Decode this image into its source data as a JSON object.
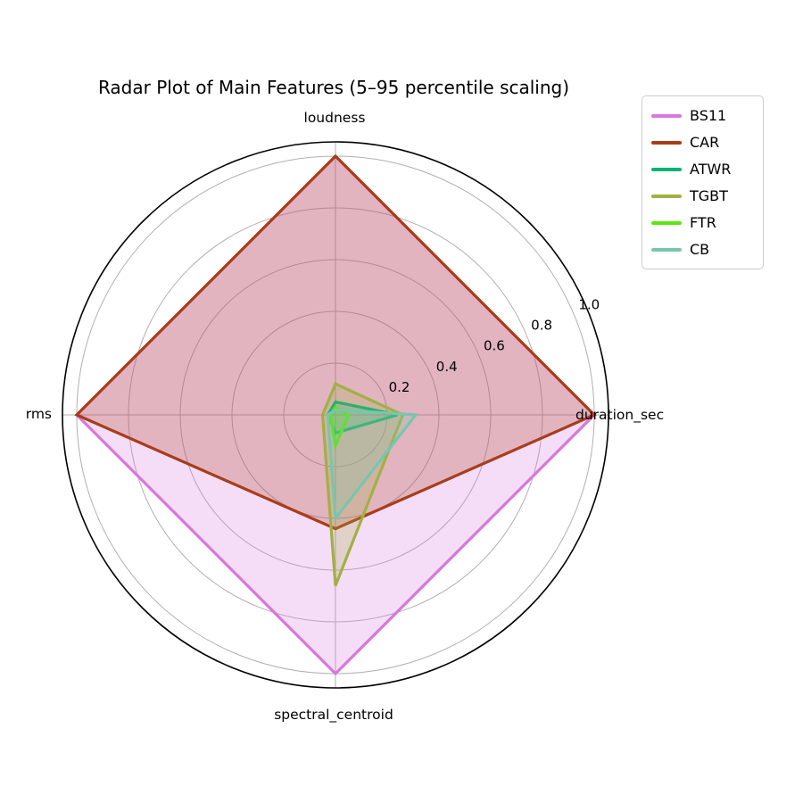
{
  "chart_data": {
    "type": "radar",
    "title": "Radar Plot of Main Features (5–95 percentile scaling)",
    "axes": [
      "duration_sec",
      "loudness",
      "rms",
      "spectral_centroid"
    ],
    "radial_ticks": [
      0.2,
      0.4,
      0.6,
      0.8,
      1.0
    ],
    "radial_tick_labels": [
      "0.2",
      "0.4",
      "0.6",
      "0.8",
      "1.0"
    ],
    "rlim": [
      0,
      1.055
    ],
    "grid": true,
    "fill_alpha": 0.25,
    "legend_position": "upper right",
    "series": [
      {
        "name": "BS11",
        "color": "#D876DE",
        "values": [
          1.0,
          1.0,
          1.0,
          1.0
        ]
      },
      {
        "name": "CAR",
        "color": "#A93D1A",
        "values": [
          1.0,
          1.0,
          1.0,
          0.44
        ]
      },
      {
        "name": "ATWR",
        "color": "#00B377",
        "values": [
          0.24,
          0.05,
          0.03,
          0.07
        ]
      },
      {
        "name": "TGBT",
        "color": "#A2B044",
        "values": [
          0.26,
          0.12,
          0.05,
          0.66
        ]
      },
      {
        "name": "FTR",
        "color": "#5CE60F",
        "values": [
          0.05,
          0.03,
          0.02,
          0.12
        ]
      },
      {
        "name": "CB",
        "color": "#77C6AD",
        "values": [
          0.31,
          0.02,
          0.03,
          0.4
        ]
      }
    ],
    "colors": {
      "grid": "#b0b0b0",
      "outer_circle": "#000000",
      "text": "#000000",
      "background": "#ffffff"
    }
  }
}
